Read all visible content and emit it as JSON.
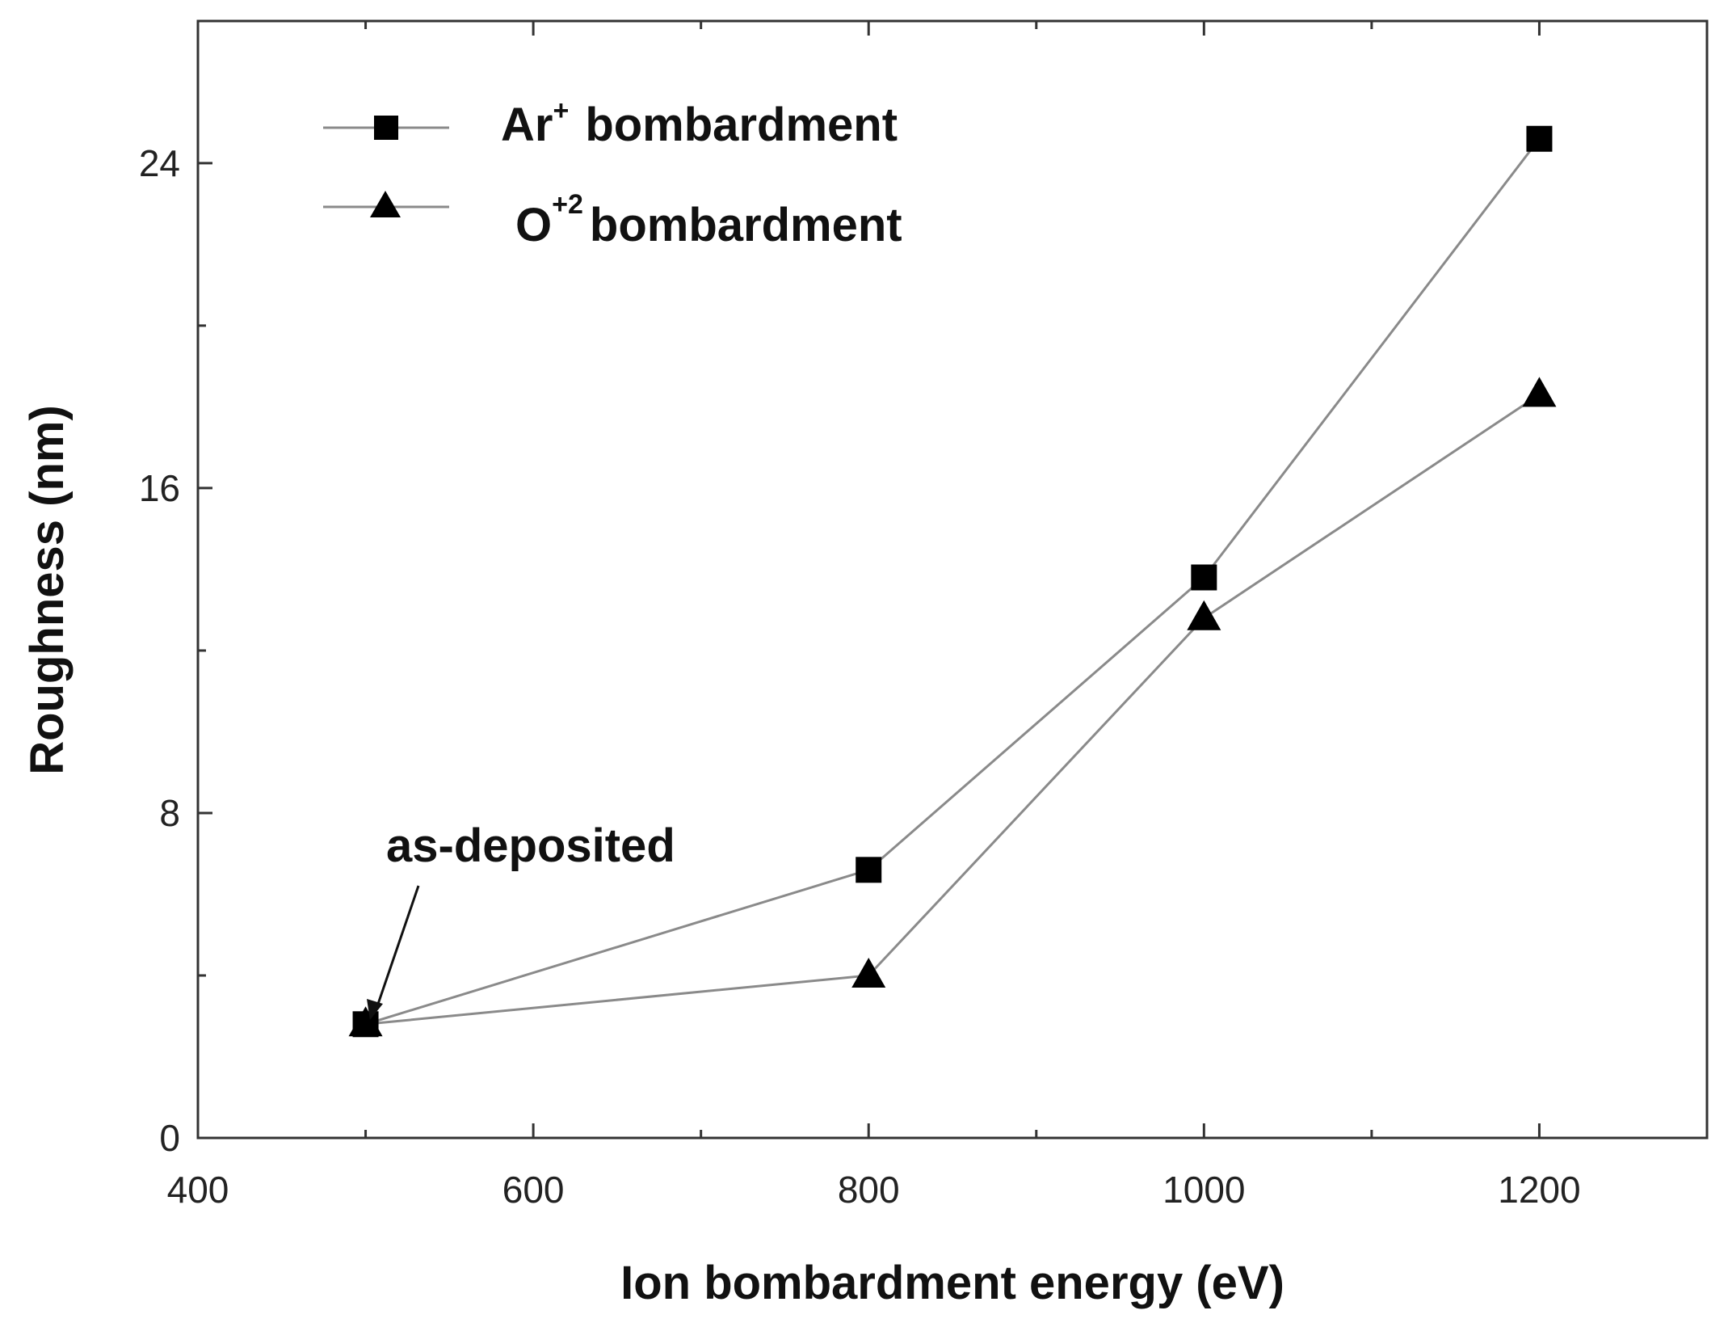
{
  "chart_data": {
    "type": "line",
    "title": "",
    "xlabel": "Ion bombardment energy  (eV)",
    "ylabel": "Roughness  (nm)",
    "xlim": [
      400,
      1300
    ],
    "ylim": [
      0,
      27.5
    ],
    "x_ticks": [
      400,
      600,
      800,
      1000,
      1200
    ],
    "y_ticks": [
      0,
      8,
      16,
      24
    ],
    "grid": false,
    "legend_position": "top-left",
    "series": [
      {
        "name": "Ar+ bombardment",
        "label_base": "Ar",
        "label_sup": "+",
        "label_rest": "bombardment",
        "marker": "square",
        "x": [
          500,
          800,
          1000,
          1200
        ],
        "values": [
          2.8,
          6.6,
          13.8,
          24.6
        ]
      },
      {
        "name": "O+2 bombardment",
        "label_base": "O",
        "label_sup": "+2",
        "label_rest": "bombardment",
        "marker": "triangle",
        "x": [
          500,
          800,
          1000,
          1200
        ],
        "values": [
          2.8,
          4.0,
          12.8,
          18.3
        ]
      }
    ],
    "annotations": [
      {
        "text": "as-deposited",
        "x": 500,
        "y": 2.8
      }
    ]
  }
}
